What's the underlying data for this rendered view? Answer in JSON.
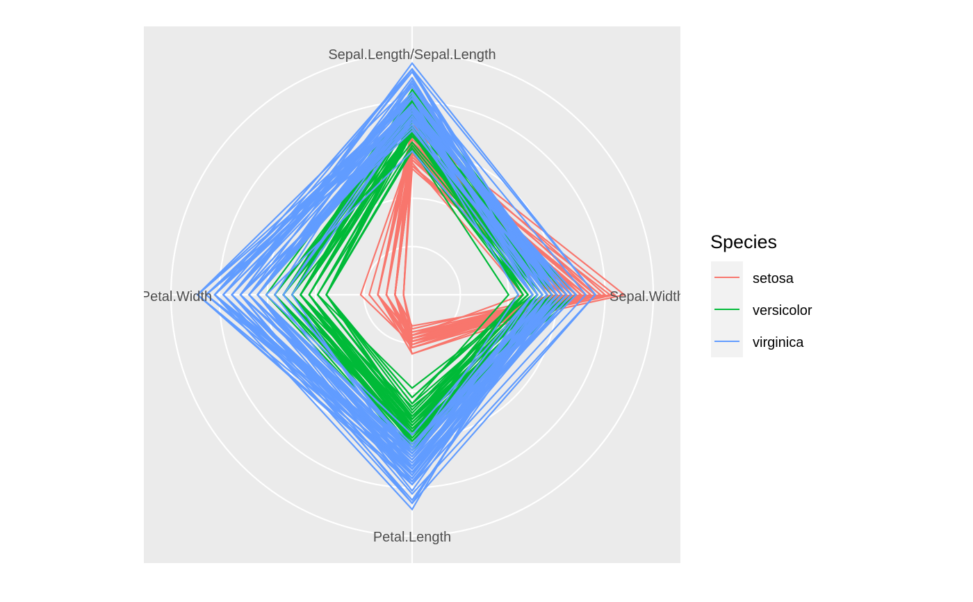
{
  "chart_data": {
    "type": "radar",
    "title": "",
    "axes": [
      "Sepal.Length/Sepal.Length",
      "Sepal.Width",
      "Petal.Length",
      "Petal.Width"
    ],
    "radial_max": 1.0,
    "radial_breaks": [
      0.2,
      0.4,
      0.6,
      0.8,
      1.0
    ],
    "grid": true,
    "legend": {
      "title": "Species",
      "placement": "right",
      "entries": [
        {
          "name": "setosa",
          "color": "#F8766D"
        },
        {
          "name": "versicolor",
          "color": "#00BA38"
        },
        {
          "name": "virginica",
          "color": "#619CFF"
        }
      ]
    },
    "series": [
      {
        "name": "setosa",
        "color": "#F8766D",
        "sepal_length": [
          5.1,
          4.9,
          4.7,
          4.6,
          5.0,
          5.4,
          4.6,
          5.0,
          4.4,
          4.9,
          5.4,
          4.8,
          4.8,
          4.3,
          5.8,
          5.7,
          5.4,
          5.1,
          5.7,
          5.1,
          5.4,
          5.1,
          4.6,
          5.1,
          4.8,
          5.0,
          5.0,
          5.2,
          5.2,
          4.7,
          4.8,
          5.4,
          5.2,
          5.5,
          4.9,
          5.0,
          5.5,
          4.9,
          4.4,
          5.1,
          5.0,
          4.5,
          4.4,
          5.0,
          5.1,
          4.8,
          5.1,
          4.6,
          5.3,
          5.0
        ],
        "sepal_width": [
          3.5,
          3.0,
          3.2,
          3.1,
          3.6,
          3.9,
          3.4,
          3.4,
          2.9,
          3.1,
          3.7,
          3.4,
          3.0,
          3.0,
          4.0,
          4.4,
          3.9,
          3.5,
          3.8,
          3.8,
          3.4,
          3.7,
          3.6,
          3.3,
          3.4,
          3.0,
          3.4,
          3.5,
          3.4,
          3.2,
          3.1,
          3.4,
          4.1,
          4.2,
          3.1,
          3.2,
          3.5,
          3.6,
          3.0,
          3.4,
          3.5,
          2.3,
          3.2,
          3.5,
          3.8,
          3.0,
          3.8,
          3.2,
          3.7,
          3.3
        ],
        "petal_length": [
          1.4,
          1.4,
          1.3,
          1.5,
          1.4,
          1.7,
          1.4,
          1.5,
          1.4,
          1.5,
          1.5,
          1.6,
          1.4,
          1.1,
          1.2,
          1.5,
          1.3,
          1.4,
          1.7,
          1.5,
          1.7,
          1.5,
          1.0,
          1.7,
          1.9,
          1.6,
          1.6,
          1.5,
          1.4,
          1.6,
          1.6,
          1.5,
          1.5,
          1.4,
          1.5,
          1.2,
          1.3,
          1.4,
          1.3,
          1.5,
          1.3,
          1.3,
          1.3,
          1.6,
          1.9,
          1.4,
          1.6,
          1.4,
          1.5,
          1.4
        ],
        "petal_width": [
          0.2,
          0.2,
          0.2,
          0.2,
          0.2,
          0.4,
          0.3,
          0.2,
          0.2,
          0.1,
          0.2,
          0.2,
          0.1,
          0.1,
          0.2,
          0.4,
          0.4,
          0.3,
          0.3,
          0.3,
          0.2,
          0.4,
          0.2,
          0.5,
          0.2,
          0.2,
          0.4,
          0.2,
          0.2,
          0.2,
          0.2,
          0.4,
          0.1,
          0.2,
          0.2,
          0.2,
          0.2,
          0.1,
          0.2,
          0.2,
          0.3,
          0.3,
          0.2,
          0.6,
          0.4,
          0.3,
          0.2,
          0.2,
          0.2,
          0.2
        ]
      },
      {
        "name": "versicolor",
        "color": "#00BA38",
        "sepal_length": [
          7.0,
          6.4,
          6.9,
          5.5,
          6.5,
          5.7,
          6.3,
          4.9,
          6.6,
          5.2,
          5.0,
          5.9,
          6.0,
          6.1,
          5.6,
          6.7,
          5.6,
          5.8,
          6.2,
          5.6,
          5.9,
          6.1,
          6.3,
          6.1,
          6.4,
          6.6,
          6.8,
          6.7,
          6.0,
          5.7,
          5.5,
          5.5,
          5.8,
          6.0,
          5.4,
          6.0,
          6.7,
          6.3,
          5.6,
          5.5,
          5.5,
          6.1,
          5.8,
          5.0,
          5.6,
          5.7,
          5.7,
          6.2,
          5.1,
          5.7
        ],
        "sepal_width": [
          3.2,
          3.2,
          3.1,
          2.3,
          2.8,
          2.8,
          3.3,
          2.4,
          2.9,
          2.7,
          2.0,
          3.0,
          2.2,
          2.9,
          2.9,
          3.1,
          3.0,
          2.7,
          2.2,
          2.5,
          3.2,
          2.8,
          2.5,
          2.8,
          2.9,
          3.0,
          2.8,
          3.0,
          2.9,
          2.6,
          2.4,
          2.4,
          2.7,
          2.7,
          3.0,
          3.4,
          3.1,
          2.3,
          3.0,
          2.5,
          2.6,
          3.0,
          2.6,
          2.3,
          2.7,
          3.0,
          2.9,
          2.9,
          2.5,
          2.8
        ],
        "petal_length": [
          4.7,
          4.5,
          4.9,
          4.0,
          4.6,
          4.5,
          4.7,
          3.3,
          4.6,
          3.9,
          3.5,
          4.2,
          4.0,
          4.7,
          3.6,
          4.4,
          4.5,
          4.1,
          4.5,
          3.9,
          4.8,
          4.0,
          4.9,
          4.7,
          4.3,
          4.4,
          4.8,
          5.0,
          4.5,
          3.5,
          3.8,
          3.7,
          3.9,
          5.1,
          4.5,
          4.5,
          4.7,
          4.4,
          4.1,
          4.0,
          4.4,
          4.6,
          4.0,
          3.3,
          4.2,
          4.2,
          4.2,
          4.3,
          3.0,
          4.1
        ],
        "petal_width": [
          1.4,
          1.5,
          1.5,
          1.3,
          1.5,
          1.3,
          1.6,
          1.0,
          1.3,
          1.4,
          1.0,
          1.5,
          1.0,
          1.4,
          1.3,
          1.4,
          1.5,
          1.0,
          1.5,
          1.1,
          1.8,
          1.3,
          1.5,
          1.2,
          1.3,
          1.4,
          1.4,
          1.7,
          1.5,
          1.0,
          1.1,
          1.0,
          1.2,
          1.6,
          1.5,
          1.6,
          1.5,
          1.3,
          1.3,
          1.3,
          1.2,
          1.4,
          1.2,
          1.0,
          1.3,
          1.2,
          1.3,
          1.3,
          1.1,
          1.3
        ]
      },
      {
        "name": "virginica",
        "color": "#619CFF",
        "sepal_length": [
          6.3,
          5.8,
          7.1,
          6.3,
          6.5,
          7.6,
          4.9,
          7.3,
          6.7,
          7.2,
          6.5,
          6.4,
          6.8,
          5.7,
          5.8,
          6.4,
          6.5,
          7.7,
          7.7,
          6.0,
          6.9,
          5.6,
          7.7,
          6.3,
          6.7,
          7.2,
          6.2,
          6.1,
          6.4,
          7.2,
          7.4,
          7.9,
          6.4,
          6.3,
          6.1,
          7.7,
          6.3,
          6.4,
          6.0,
          6.9,
          6.7,
          6.9,
          5.8,
          6.8,
          6.7,
          6.7,
          6.3,
          6.5,
          6.2,
          5.9
        ],
        "sepal_width": [
          3.3,
          2.7,
          3.0,
          2.9,
          3.0,
          3.0,
          2.5,
          2.9,
          2.5,
          3.6,
          3.2,
          2.7,
          3.0,
          2.5,
          2.8,
          3.2,
          3.0,
          3.8,
          2.6,
          2.2,
          3.2,
          2.8,
          2.8,
          2.7,
          3.3,
          3.2,
          2.8,
          3.0,
          2.8,
          3.0,
          2.8,
          3.8,
          2.8,
          2.8,
          2.6,
          3.0,
          3.4,
          3.1,
          3.0,
          3.1,
          3.1,
          3.1,
          2.7,
          3.2,
          3.3,
          3.0,
          2.5,
          3.0,
          3.4,
          3.0
        ],
        "petal_length": [
          6.0,
          5.1,
          5.9,
          5.6,
          5.8,
          6.6,
          4.5,
          6.3,
          5.8,
          6.1,
          5.1,
          5.3,
          5.5,
          5.0,
          5.1,
          5.3,
          5.5,
          6.7,
          6.9,
          5.0,
          5.7,
          4.9,
          6.7,
          4.9,
          5.7,
          6.0,
          4.8,
          4.9,
          5.6,
          5.8,
          6.1,
          6.4,
          5.6,
          5.1,
          5.6,
          6.1,
          5.6,
          5.5,
          4.8,
          5.4,
          5.6,
          5.1,
          5.1,
          5.9,
          5.7,
          5.2,
          5.0,
          5.2,
          5.4,
          5.1
        ],
        "petal_width": [
          2.5,
          1.9,
          2.1,
          1.8,
          2.2,
          2.1,
          1.7,
          1.8,
          1.8,
          2.5,
          2.0,
          1.9,
          2.1,
          2.0,
          2.4,
          2.3,
          1.8,
          2.2,
          2.3,
          1.5,
          2.3,
          2.0,
          2.0,
          1.8,
          2.1,
          1.8,
          1.8,
          1.8,
          2.1,
          1.6,
          1.9,
          2.0,
          2.2,
          1.5,
          1.4,
          2.3,
          2.4,
          1.8,
          1.8,
          2.1,
          2.4,
          2.3,
          1.9,
          2.3,
          2.5,
          2.3,
          1.9,
          2.0,
          2.3,
          1.8
        ]
      }
    ]
  }
}
